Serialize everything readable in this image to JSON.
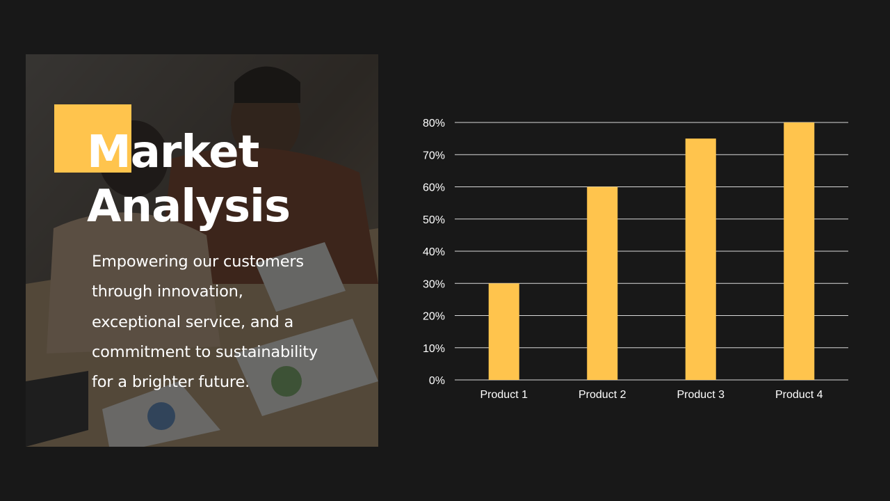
{
  "slide": {
    "title": "Market Analysis",
    "title_line_1": "Market",
    "title_line_2": "Analysis",
    "subtitle": "Empowering our customers through innovation, exceptional service, and a commitment to sustainability for a brighter future.",
    "subtitle_lines": [
      "Empowering our customers",
      "through innovation,",
      "exceptional service, and a",
      "commitment to sustainability",
      "for a brighter future."
    ]
  },
  "colors": {
    "background": "#181818",
    "accent": "#FFC44D",
    "text": "#FFFFFF",
    "gridline": "#D9D9D9"
  },
  "photo": {
    "subject": "business-meeting-photo"
  },
  "chart_data": {
    "type": "bar",
    "categories": [
      "Product 1",
      "Product 2",
      "Product 3",
      "Product 4"
    ],
    "values": [
      30,
      60,
      75,
      80
    ],
    "value_unit": "%",
    "title": "",
    "xlabel": "",
    "ylabel": "",
    "ylim": [
      0,
      80
    ],
    "yticks": [
      0,
      10,
      20,
      30,
      40,
      50,
      60,
      70,
      80
    ],
    "ytick_labels": [
      "0%",
      "10%",
      "20%",
      "30%",
      "40%",
      "50%",
      "60%",
      "70%",
      "80%"
    ],
    "grid": true,
    "legend": "none",
    "bar_color": "#FFC44D"
  }
}
